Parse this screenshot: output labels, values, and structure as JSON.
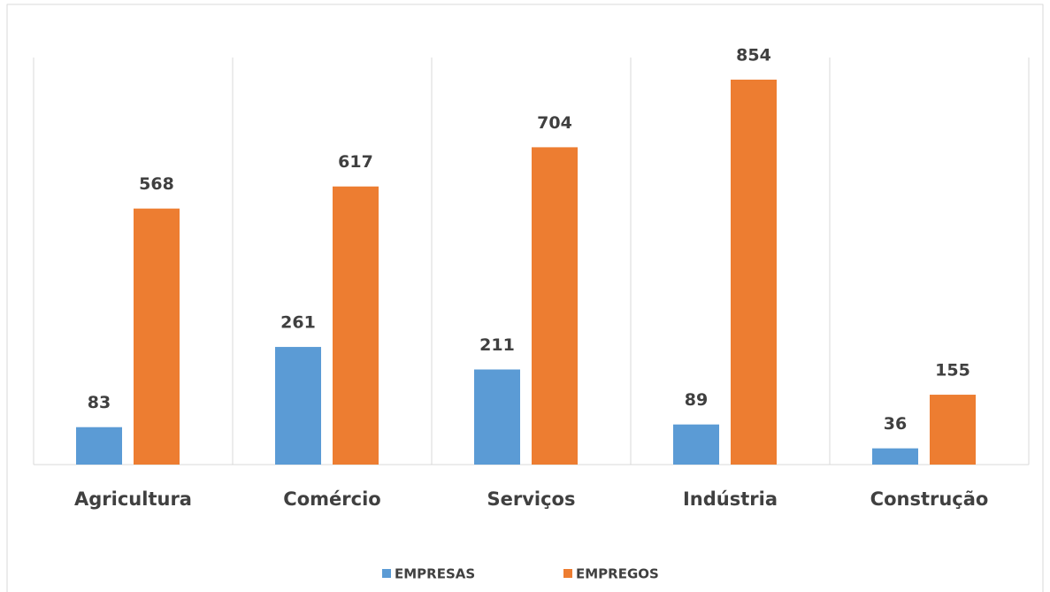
{
  "chart_data": {
    "type": "bar",
    "categories": [
      "Agricultura",
      "Comércio",
      "Serviços",
      "Indústria",
      "Construção"
    ],
    "series": [
      {
        "name": "EMPRESAS",
        "color": "#5b9bd5",
        "values": [
          83,
          261,
          211,
          89,
          36
        ]
      },
      {
        "name": "EMPREGOS",
        "color": "#ed7d31",
        "values": [
          568,
          617,
          704,
          854,
          155
        ]
      }
    ],
    "legend": "bottom"
  }
}
